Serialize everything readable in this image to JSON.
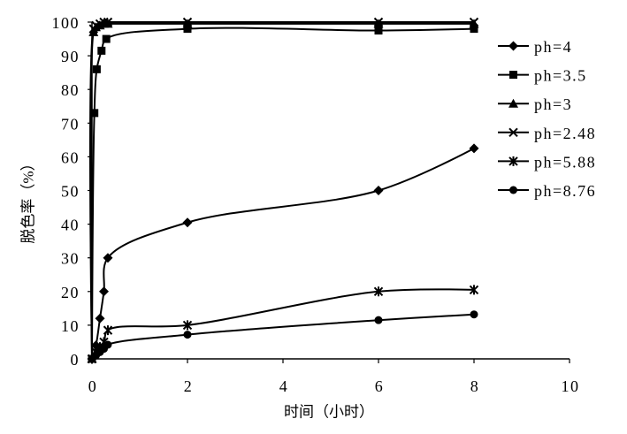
{
  "chart_data": {
    "type": "line",
    "xlabel": "时间（小时）",
    "ylabel": "脱色率（%）",
    "xlim": [
      0,
      10
    ],
    "ylim": [
      0,
      100
    ],
    "xticks": [
      0,
      2,
      4,
      6,
      8,
      10
    ],
    "yticks": [
      0,
      10,
      20,
      30,
      40,
      50,
      60,
      70,
      80,
      90,
      100
    ],
    "grid": false,
    "legend": "right",
    "smooth": true,
    "color": "#000000",
    "series": [
      {
        "name": "ph=4",
        "marker": "diamond",
        "points": [
          [
            0,
            0
          ],
          [
            0.083,
            4
          ],
          [
            0.167,
            12
          ],
          [
            0.25,
            20
          ],
          [
            0.333,
            30
          ],
          [
            2,
            40.5
          ],
          [
            6,
            50
          ],
          [
            8,
            62.5
          ]
        ]
      },
      {
        "name": "ph=3.5",
        "marker": "square",
        "points": [
          [
            0,
            0
          ],
          [
            0.05,
            73
          ],
          [
            0.1,
            86
          ],
          [
            0.2,
            91.5
          ],
          [
            0.3,
            95
          ],
          [
            2,
            98
          ],
          [
            6,
            97.5
          ],
          [
            8,
            98
          ]
        ]
      },
      {
        "name": "ph=3",
        "marker": "triangle",
        "points": [
          [
            0,
            0
          ],
          [
            0.033,
            97
          ],
          [
            0.083,
            98.5
          ],
          [
            0.167,
            99
          ],
          [
            0.25,
            99.5
          ],
          [
            0.333,
            99.5
          ],
          [
            2,
            99.5
          ],
          [
            6,
            99.5
          ],
          [
            8,
            99.5
          ]
        ]
      },
      {
        "name": "ph=2.48",
        "marker": "x",
        "points": [
          [
            0,
            0
          ],
          [
            0.033,
            98
          ],
          [
            0.083,
            99
          ],
          [
            0.167,
            99.5
          ],
          [
            0.25,
            100
          ],
          [
            0.333,
            100
          ],
          [
            2,
            100
          ],
          [
            6,
            100
          ],
          [
            8,
            100
          ]
        ]
      },
      {
        "name": "ph=5.88",
        "marker": "asterisk",
        "points": [
          [
            0,
            0
          ],
          [
            0.083,
            2
          ],
          [
            0.167,
            3.5
          ],
          [
            0.25,
            5
          ],
          [
            0.333,
            8.5
          ],
          [
            2,
            10
          ],
          [
            6,
            20
          ],
          [
            8,
            20.5
          ]
        ]
      },
      {
        "name": "ph=8.76",
        "marker": "circle",
        "points": [
          [
            0,
            0
          ],
          [
            0.083,
            1
          ],
          [
            0.167,
            2
          ],
          [
            0.25,
            3
          ],
          [
            0.333,
            4.2
          ],
          [
            2,
            7.2
          ],
          [
            6,
            11.5
          ],
          [
            8,
            13.2
          ]
        ]
      }
    ]
  }
}
